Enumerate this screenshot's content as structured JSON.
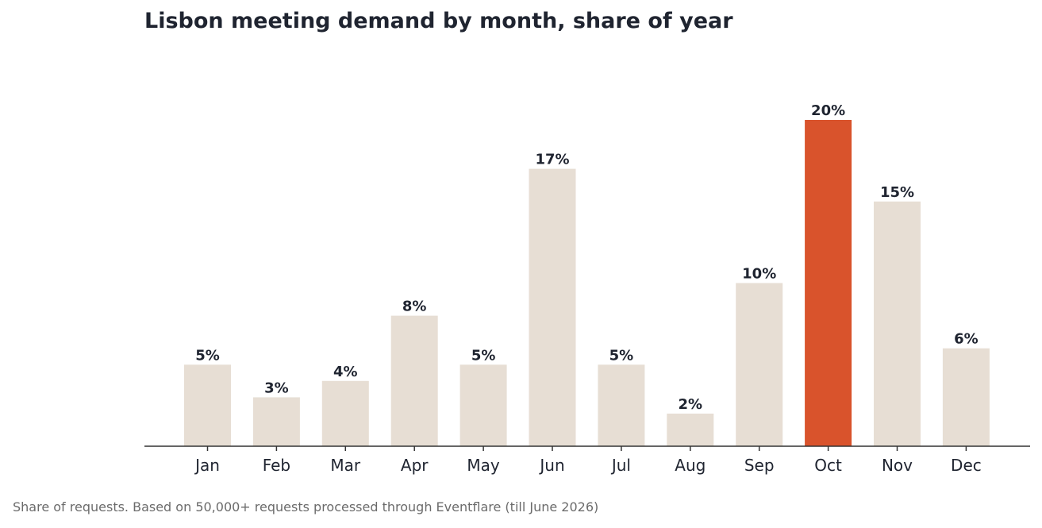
{
  "chart_data": {
    "type": "bar",
    "title": "Lisbon meeting demand by month, share of year",
    "categories": [
      "Jan",
      "Feb",
      "Mar",
      "Apr",
      "May",
      "Jun",
      "Jul",
      "Aug",
      "Sep",
      "Oct",
      "Nov",
      "Dec"
    ],
    "values": [
      5,
      3,
      4,
      8,
      5,
      17,
      5,
      2,
      10,
      20,
      15,
      6
    ],
    "value_labels": [
      "5%",
      "3%",
      "4%",
      "8%",
      "5%",
      "17%",
      "5%",
      "2%",
      "10%",
      "20%",
      "15%",
      "6%"
    ],
    "unit": "%",
    "highlight_category": "Oct",
    "ylim": [
      0,
      20
    ],
    "grid": false,
    "y_axis_visible": false,
    "colors": {
      "bar": "#e7ded4",
      "highlight": "#d9532c",
      "text": "#1f2430",
      "axis": "#333333"
    }
  },
  "footnote": "Share of requests. Based on 50,000+ requests processed through Eventflare (till June 2026)"
}
